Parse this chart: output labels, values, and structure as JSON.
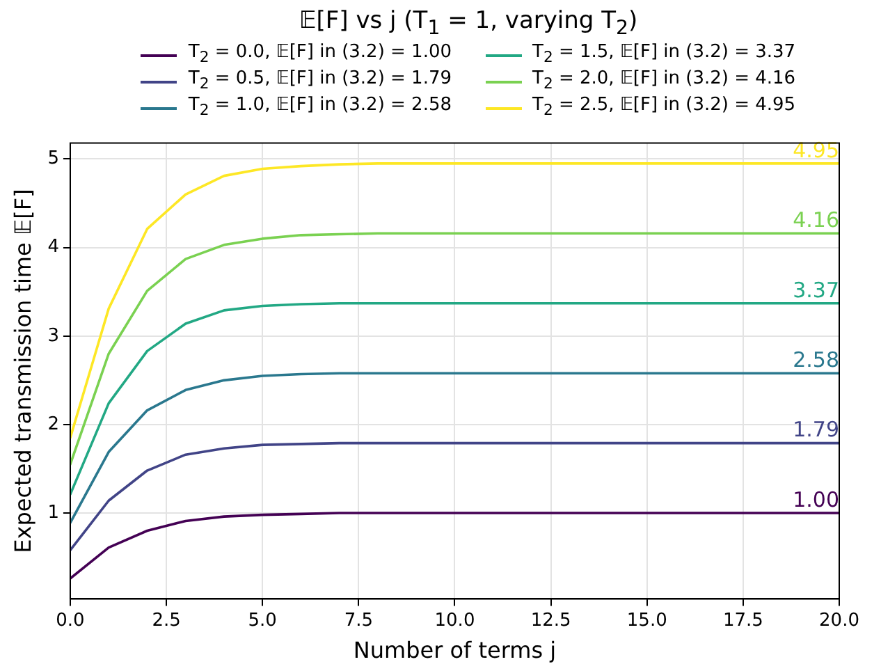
{
  "chart_data": {
    "type": "line",
    "title": "𝔼[F] vs j (T$_{1}$ = 1, varying T$_{2}$)",
    "xlabel": "Number of terms j",
    "ylabel": "Expected transmission time 𝔼[F]",
    "x": [
      0,
      1,
      2,
      3,
      4,
      5,
      6,
      7,
      8,
      9,
      10,
      11,
      12,
      13,
      14,
      15,
      16,
      17,
      18,
      19,
      20
    ],
    "xlim": [
      0,
      20
    ],
    "xticks": [
      {
        "value": 0,
        "label": "0.0"
      },
      {
        "value": 2.5,
        "label": "2.5"
      },
      {
        "value": 5,
        "label": "5.0"
      },
      {
        "value": 7.5,
        "label": "7.5"
      },
      {
        "value": 10,
        "label": "10.0"
      },
      {
        "value": 12.5,
        "label": "12.5"
      },
      {
        "value": 15,
        "label": "15.0"
      },
      {
        "value": 17.5,
        "label": "17.5"
      },
      {
        "value": 20,
        "label": "20.0"
      }
    ],
    "ylim": [
      0.03,
      5.18
    ],
    "yticks": [
      1,
      2,
      3,
      4,
      5
    ],
    "grid": true,
    "legend": "top",
    "marker": "none",
    "line_style": "solid",
    "series": [
      {
        "name": "T$_{2}$ = 0.0, 𝔼[F] in (3.2) = 1.00",
        "color": "#440154",
        "values": [
          0.26,
          0.61,
          0.8,
          0.91,
          0.96,
          0.98,
          0.99,
          1,
          1,
          1,
          1,
          1,
          1,
          1,
          1,
          1,
          1,
          1,
          1,
          1,
          1
        ],
        "value_labels": [
          null,
          null,
          null,
          null,
          null,
          null,
          null,
          null,
          null,
          null,
          null,
          null,
          null,
          null,
          null,
          null,
          null,
          null,
          null,
          null,
          "1.00"
        ]
      },
      {
        "name": "T$_{2}$ = 0.5, 𝔼[F] in (3.2) = 1.79",
        "color": "#414487",
        "values": [
          0.58,
          1.14,
          1.48,
          1.66,
          1.73,
          1.77,
          1.78,
          1.79,
          1.79,
          1.79,
          1.79,
          1.79,
          1.79,
          1.79,
          1.79,
          1.79,
          1.79,
          1.79,
          1.79,
          1.79,
          1.79
        ],
        "value_labels": [
          null,
          null,
          null,
          null,
          null,
          null,
          null,
          null,
          null,
          null,
          null,
          null,
          null,
          null,
          null,
          null,
          null,
          null,
          null,
          null,
          "1.79"
        ]
      },
      {
        "name": "T$_{2}$ = 1.0, 𝔼[F] in (3.2) = 2.58",
        "color": "#2a788e",
        "values": [
          0.89,
          1.69,
          2.16,
          2.39,
          2.5,
          2.55,
          2.57,
          2.58,
          2.58,
          2.58,
          2.58,
          2.58,
          2.58,
          2.58,
          2.58,
          2.58,
          2.58,
          2.58,
          2.58,
          2.58,
          2.58
        ],
        "value_labels": [
          null,
          null,
          null,
          null,
          null,
          null,
          null,
          null,
          null,
          null,
          null,
          null,
          null,
          null,
          null,
          null,
          null,
          null,
          null,
          null,
          "2.58"
        ]
      },
      {
        "name": "T$_{2}$ = 1.5, 𝔼[F] in (3.2) = 3.37",
        "color": "#22a884",
        "values": [
          1.21,
          2.24,
          2.83,
          3.14,
          3.29,
          3.34,
          3.36,
          3.37,
          3.37,
          3.37,
          3.37,
          3.37,
          3.37,
          3.37,
          3.37,
          3.37,
          3.37,
          3.37,
          3.37,
          3.37,
          3.37
        ],
        "value_labels": [
          null,
          null,
          null,
          null,
          null,
          null,
          null,
          null,
          null,
          null,
          null,
          null,
          null,
          null,
          null,
          null,
          null,
          null,
          null,
          null,
          "3.37"
        ]
      },
      {
        "name": "T$_{2}$ = 2.0, 𝔼[F] in (3.2) = 4.16",
        "color": "#7ad151",
        "values": [
          1.55,
          2.8,
          3.51,
          3.87,
          4.03,
          4.1,
          4.14,
          4.15,
          4.16,
          4.16,
          4.16,
          4.16,
          4.16,
          4.16,
          4.16,
          4.16,
          4.16,
          4.16,
          4.16,
          4.16,
          4.16
        ],
        "value_labels": [
          null,
          null,
          null,
          null,
          null,
          null,
          null,
          null,
          null,
          null,
          null,
          null,
          null,
          null,
          null,
          null,
          null,
          null,
          null,
          null,
          "4.16"
        ]
      },
      {
        "name": "T$_{2}$ = 2.5, 𝔼[F] in (3.2) = 4.95",
        "color": "#fde725",
        "values": [
          1.85,
          3.31,
          4.21,
          4.6,
          4.81,
          4.89,
          4.92,
          4.94,
          4.95,
          4.95,
          4.95,
          4.95,
          4.95,
          4.95,
          4.95,
          4.95,
          4.95,
          4.95,
          4.95,
          4.95,
          4.95
        ],
        "value_labels": [
          null,
          null,
          null,
          null,
          null,
          null,
          null,
          null,
          null,
          null,
          null,
          null,
          null,
          null,
          null,
          null,
          null,
          null,
          null,
          null,
          "4.95"
        ]
      }
    ]
  }
}
